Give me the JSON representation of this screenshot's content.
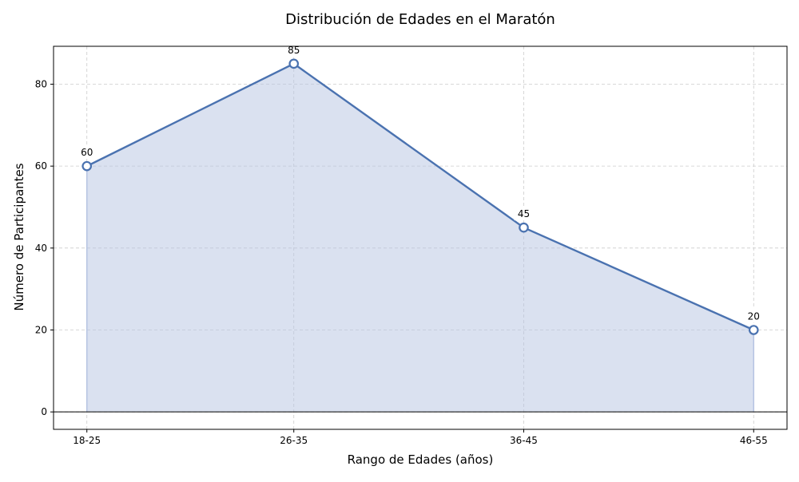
{
  "chart_data": {
    "type": "area",
    "title": "Distribución de Edades en el Maratón",
    "xlabel": "Rango de Edades (años)",
    "ylabel": "Número de Participantes",
    "categories": [
      "18-25",
      "26-35",
      "36-45",
      "46-55"
    ],
    "x_numeric": [
      21.5,
      30.5,
      40.5,
      50.5
    ],
    "series": [
      {
        "values": [
          60,
          85,
          45,
          20
        ]
      }
    ],
    "ylim": [
      -4.25,
      89.25
    ],
    "xlim": [
      20.05,
      51.95
    ],
    "yticks": [
      0,
      20,
      40,
      60,
      80
    ],
    "grid": true,
    "legend": "none",
    "colors": {
      "line": "#4a72b0",
      "fill": "#b6c4e2",
      "marker_face": "#ffffff",
      "zero_line": "#000000"
    }
  }
}
